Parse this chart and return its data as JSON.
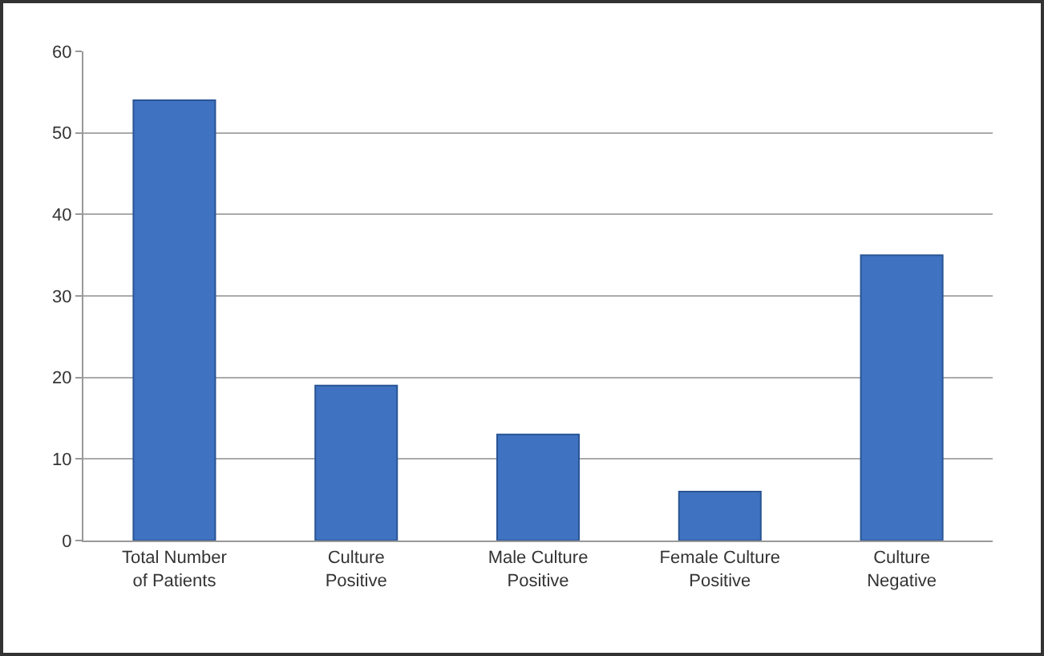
{
  "chart_data": {
    "type": "bar",
    "categories": [
      "Total Number of Patients",
      "Culture Positive",
      "Male Culture Positive",
      "Female Culture Positive",
      "Culture Negative"
    ],
    "values": [
      54,
      19,
      13,
      6,
      35
    ],
    "color": "#3f72c0",
    "ylim": [
      0,
      60
    ],
    "yticks": [
      0,
      10,
      20,
      30,
      40,
      50,
      60
    ],
    "grid": "y"
  }
}
